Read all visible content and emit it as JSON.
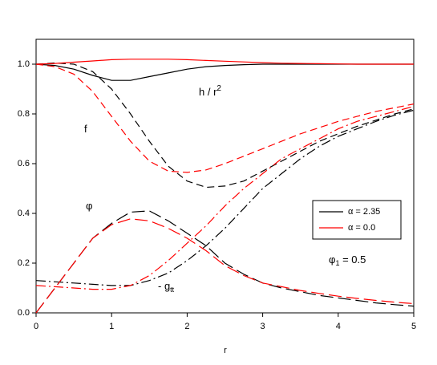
{
  "chart_data": {
    "type": "line",
    "x_label": "r",
    "x": [
      0,
      0.25,
      0.5,
      0.75,
      1,
      1.25,
      1.5,
      1.75,
      2,
      2.25,
      2.5,
      2.75,
      3,
      3.25,
      3.5,
      3.75,
      4,
      4.25,
      4.5,
      4.75,
      5
    ],
    "xlim": [
      0,
      5
    ],
    "xticks": [
      0,
      1,
      2,
      3,
      4,
      5
    ],
    "ylim": [
      0,
      1.1
    ],
    "yticks": [
      {
        "value": 0,
        "label": "0.0"
      },
      0.2,
      0.4,
      0.6,
      0.8,
      {
        "value": 1,
        "label": "1.0"
      }
    ],
    "series": [
      {
        "name": "α = 2.35",
        "color": "#000000",
        "curves": [
          {
            "style": "solid",
            "values": [
              1.0,
              0.995,
              0.98,
              0.955,
              0.935,
              0.935,
              0.95,
              0.965,
              0.98,
              0.99,
              0.995,
              0.998,
              1.0,
              1.0,
              1.0,
              1.0,
              1.0,
              1.0,
              1.0,
              1.0,
              1.0
            ]
          },
          {
            "style": "dashed",
            "values": [
              1.0,
              1.005,
              1.0,
              0.97,
              0.9,
              0.8,
              0.69,
              0.59,
              0.53,
              0.505,
              0.51,
              0.53,
              0.57,
              0.61,
              0.65,
              0.69,
              0.72,
              0.75,
              0.775,
              0.8,
              0.82
            ]
          },
          {
            "style": "longdash",
            "values": [
              0,
              0.1,
              0.2,
              0.3,
              0.36,
              0.405,
              0.41,
              0.37,
              0.32,
              0.27,
              0.2,
              0.155,
              0.12,
              0.1,
              0.085,
              0.07,
              0.06,
              0.05,
              0.04,
              0.033,
              0.027
            ]
          },
          {
            "style": "dashdot",
            "values": [
              0.13,
              0.125,
              0.12,
              0.115,
              0.11,
              0.11,
              0.13,
              0.16,
              0.21,
              0.27,
              0.34,
              0.42,
              0.5,
              0.56,
              0.62,
              0.67,
              0.71,
              0.74,
              0.77,
              0.795,
              0.815
            ]
          }
        ]
      },
      {
        "name": "α = 0.0",
        "color": "#ff0000",
        "curves": [
          {
            "style": "solid",
            "values": [
              1.0,
              1.003,
              1.008,
              1.013,
              1.018,
              1.02,
              1.02,
              1.02,
              1.018,
              1.015,
              1.012,
              1.009,
              1.006,
              1.004,
              1.003,
              1.002,
              1.001,
              1.0,
              1.0,
              1.0,
              1.0
            ]
          },
          {
            "style": "dashed",
            "values": [
              1.0,
              0.99,
              0.96,
              0.89,
              0.79,
              0.69,
              0.61,
              0.57,
              0.565,
              0.575,
              0.6,
              0.63,
              0.66,
              0.69,
              0.72,
              0.745,
              0.77,
              0.79,
              0.81,
              0.825,
              0.84
            ]
          },
          {
            "style": "longdash",
            "values": [
              0,
              0.1,
              0.2,
              0.3,
              0.355,
              0.378,
              0.37,
              0.34,
              0.3,
              0.25,
              0.19,
              0.15,
              0.12,
              0.105,
              0.09,
              0.078,
              0.067,
              0.058,
              0.05,
              0.043,
              0.037
            ]
          },
          {
            "style": "dashdot",
            "values": [
              0.11,
              0.105,
              0.1,
              0.095,
              0.095,
              0.11,
              0.15,
              0.21,
              0.28,
              0.35,
              0.43,
              0.5,
              0.56,
              0.62,
              0.66,
              0.7,
              0.74,
              0.77,
              0.79,
              0.81,
              0.83
            ]
          }
        ]
      }
    ],
    "annotations": [
      {
        "text": "h / r",
        "sup": "2"
      },
      {
        "text": "f"
      },
      {
        "text": "φ"
      },
      {
        "text": "- g",
        "sub": "tt"
      },
      {
        "text": "φ",
        "sub": "1",
        "after": " = 0.5"
      }
    ],
    "legend": "right"
  }
}
